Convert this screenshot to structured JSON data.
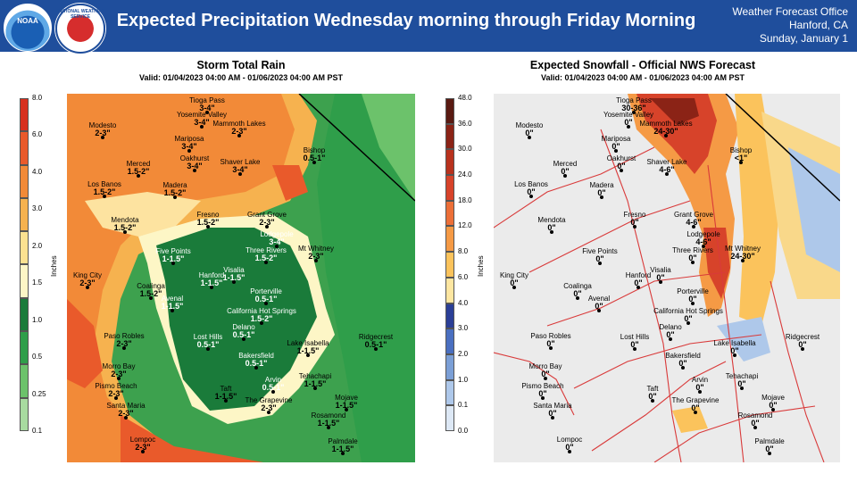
{
  "header": {
    "logo_left": "NOAA",
    "logo_right": "NATIONAL WEATHER SERVICE",
    "title": "Expected Precipitation Wednesday morning through Friday Morning",
    "office_line1": "Weather Forecast Office",
    "office_line2": "Hanford, CA",
    "office_line3": "Sunday, January 1"
  },
  "rain_panel": {
    "title": "Storm Total Rain",
    "valid": "Valid: 01/04/2023 04:00 AM - 01/06/2023 04:00 AM PST",
    "unit": "Inches",
    "colorbar_ticks": [
      "8.0",
      "6.0",
      "4.0",
      "3.0",
      "2.0",
      "1.5",
      "1.0",
      "0.5",
      "0.25",
      "0.1"
    ],
    "colorbar_colors": [
      "#d7301f",
      "#e95a2b",
      "#f28a38",
      "#f6b24f",
      "#fbe191",
      "#fdf6c6",
      "#1a7b3a",
      "#2f9e4a",
      "#6cc26b",
      "#a8dba0"
    ],
    "cities": [
      {
        "name": "Tioga Pass",
        "value": "3-4\""
      },
      {
        "name": "Yosemite Valley",
        "value": "3-4\""
      },
      {
        "name": "Mammoth Lakes",
        "value": "2-3\""
      },
      {
        "name": "Modesto",
        "value": "2-3\""
      },
      {
        "name": "Mariposa",
        "value": "3-4\""
      },
      {
        "name": "Bishop",
        "value": "0.5-1\""
      },
      {
        "name": "Merced",
        "value": "1.5-2\""
      },
      {
        "name": "Oakhurst",
        "value": "3-4\""
      },
      {
        "name": "Shaver Lake",
        "value": "3-4\""
      },
      {
        "name": "Los Banos",
        "value": "1.5-2\""
      },
      {
        "name": "Madera",
        "value": "1.5-2\""
      },
      {
        "name": "Fresno",
        "value": "1.5-2\""
      },
      {
        "name": "Grant Grove",
        "value": "2-3\""
      },
      {
        "name": "Mendota",
        "value": "1.5-2\""
      },
      {
        "name": "Lodgepole",
        "value": "3-4\""
      },
      {
        "name": "Mt Whitney",
        "value": "2-3\""
      },
      {
        "name": "Five Points",
        "value": "1-1.5\""
      },
      {
        "name": "Three Rivers",
        "value": "1.5-2\""
      },
      {
        "name": "Hanford",
        "value": "1-1.5\""
      },
      {
        "name": "Visalia",
        "value": "1-1.5\""
      },
      {
        "name": "King City",
        "value": "2-3\""
      },
      {
        "name": "Coalinga",
        "value": "1.5-2\""
      },
      {
        "name": "Porterville",
        "value": "0.5-1\""
      },
      {
        "name": "Avenal",
        "value": "1-1.5\""
      },
      {
        "name": "California Hot Springs",
        "value": "1.5-2\""
      },
      {
        "name": "Delano",
        "value": "0.5-1\""
      },
      {
        "name": "Lost Hills",
        "value": "0.5-1\""
      },
      {
        "name": "Ridgecrest",
        "value": "0.5-1\""
      },
      {
        "name": "Paso Robles",
        "value": "2-3\""
      },
      {
        "name": "Lake Isabella",
        "value": "1-1.5\""
      },
      {
        "name": "Bakersfield",
        "value": "0.5-1\""
      },
      {
        "name": "Morro Bay",
        "value": "2-3\""
      },
      {
        "name": "Tehachapi",
        "value": "1-1.5\""
      },
      {
        "name": "Taft",
        "value": "1-1.5\""
      },
      {
        "name": "Arvin",
        "value": "0.5-1\""
      },
      {
        "name": "Pismo Beach",
        "value": "2-3\""
      },
      {
        "name": "The Grapevine",
        "value": "2-3\""
      },
      {
        "name": "Mojave",
        "value": "1-1.5\""
      },
      {
        "name": "Santa Maria",
        "value": "2-3\""
      },
      {
        "name": "Rosamond",
        "value": "1-1.5\""
      },
      {
        "name": "Lompoc",
        "value": "2-3\""
      },
      {
        "name": "Palmdale",
        "value": "1-1.5\""
      }
    ]
  },
  "snow_panel": {
    "title": "Expected Snowfall - Official NWS Forecast",
    "valid": "Valid: 01/04/2023 04:00 AM - 01/06/2023 04:00 AM PST",
    "unit": "Inches",
    "colorbar_ticks": [
      "48.0",
      "36.0",
      "30.0",
      "24.0",
      "18.0",
      "12.0",
      "8.0",
      "6.0",
      "4.0",
      "3.0",
      "2.0",
      "1.0",
      "0.1",
      "0.0"
    ],
    "colorbar_colors": [
      "#5a1a12",
      "#8b2316",
      "#b8321d",
      "#d7432a",
      "#ec6f38",
      "#f59a45",
      "#fbc35c",
      "#fde6a1",
      "#2b3f97",
      "#4a6fc0",
      "#7b9fd6",
      "#aec8ea",
      "#dde8f5"
    ],
    "cities": [
      {
        "name": "Tioga Pass",
        "value": "30-36\""
      },
      {
        "name": "Yosemite Valley",
        "value": "0\""
      },
      {
        "name": "Mammoth Lakes",
        "value": "24-30\""
      },
      {
        "name": "Modesto",
        "value": "0\""
      },
      {
        "name": "Mariposa",
        "value": "0\""
      },
      {
        "name": "Bishop",
        "value": "<1\""
      },
      {
        "name": "Merced",
        "value": "0\""
      },
      {
        "name": "Oakhurst",
        "value": "0\""
      },
      {
        "name": "Shaver Lake",
        "value": "4-6\""
      },
      {
        "name": "Los Banos",
        "value": "0\""
      },
      {
        "name": "Madera",
        "value": "0\""
      },
      {
        "name": "Fresno",
        "value": "0\""
      },
      {
        "name": "Grant Grove",
        "value": "4-6\""
      },
      {
        "name": "Mendota",
        "value": "0\""
      },
      {
        "name": "Lodgepole",
        "value": "4-6\""
      },
      {
        "name": "Mt Whitney",
        "value": "24-30\""
      },
      {
        "name": "Five Points",
        "value": "0\""
      },
      {
        "name": "Three Rivers",
        "value": "0\""
      },
      {
        "name": "Hanford",
        "value": "0\""
      },
      {
        "name": "Visalia",
        "value": "0\""
      },
      {
        "name": "King City",
        "value": "0\""
      },
      {
        "name": "Coalinga",
        "value": "0\""
      },
      {
        "name": "Porterville",
        "value": "0\""
      },
      {
        "name": "Avenal",
        "value": "0\""
      },
      {
        "name": "California Hot Springs",
        "value": "0\""
      },
      {
        "name": "Delano",
        "value": "0\""
      },
      {
        "name": "Lost Hills",
        "value": "0\""
      },
      {
        "name": "Ridgecrest",
        "value": "0\""
      },
      {
        "name": "Paso Robles",
        "value": "0\""
      },
      {
        "name": "Lake Isabella",
        "value": "0\""
      },
      {
        "name": "Bakersfield",
        "value": "0\""
      },
      {
        "name": "Morro Bay",
        "value": "0\""
      },
      {
        "name": "Tehachapi",
        "value": "0\""
      },
      {
        "name": "Taft",
        "value": "0\""
      },
      {
        "name": "Arvin",
        "value": "0\""
      },
      {
        "name": "Pismo Beach",
        "value": "0\""
      },
      {
        "name": "The Grapevine",
        "value": "0\""
      },
      {
        "name": "Mojave",
        "value": "0\""
      },
      {
        "name": "Santa Maria",
        "value": "0\""
      },
      {
        "name": "Rosamond",
        "value": "0\""
      },
      {
        "name": "Lompoc",
        "value": "0\""
      },
      {
        "name": "Palmdale",
        "value": "0\""
      }
    ]
  }
}
